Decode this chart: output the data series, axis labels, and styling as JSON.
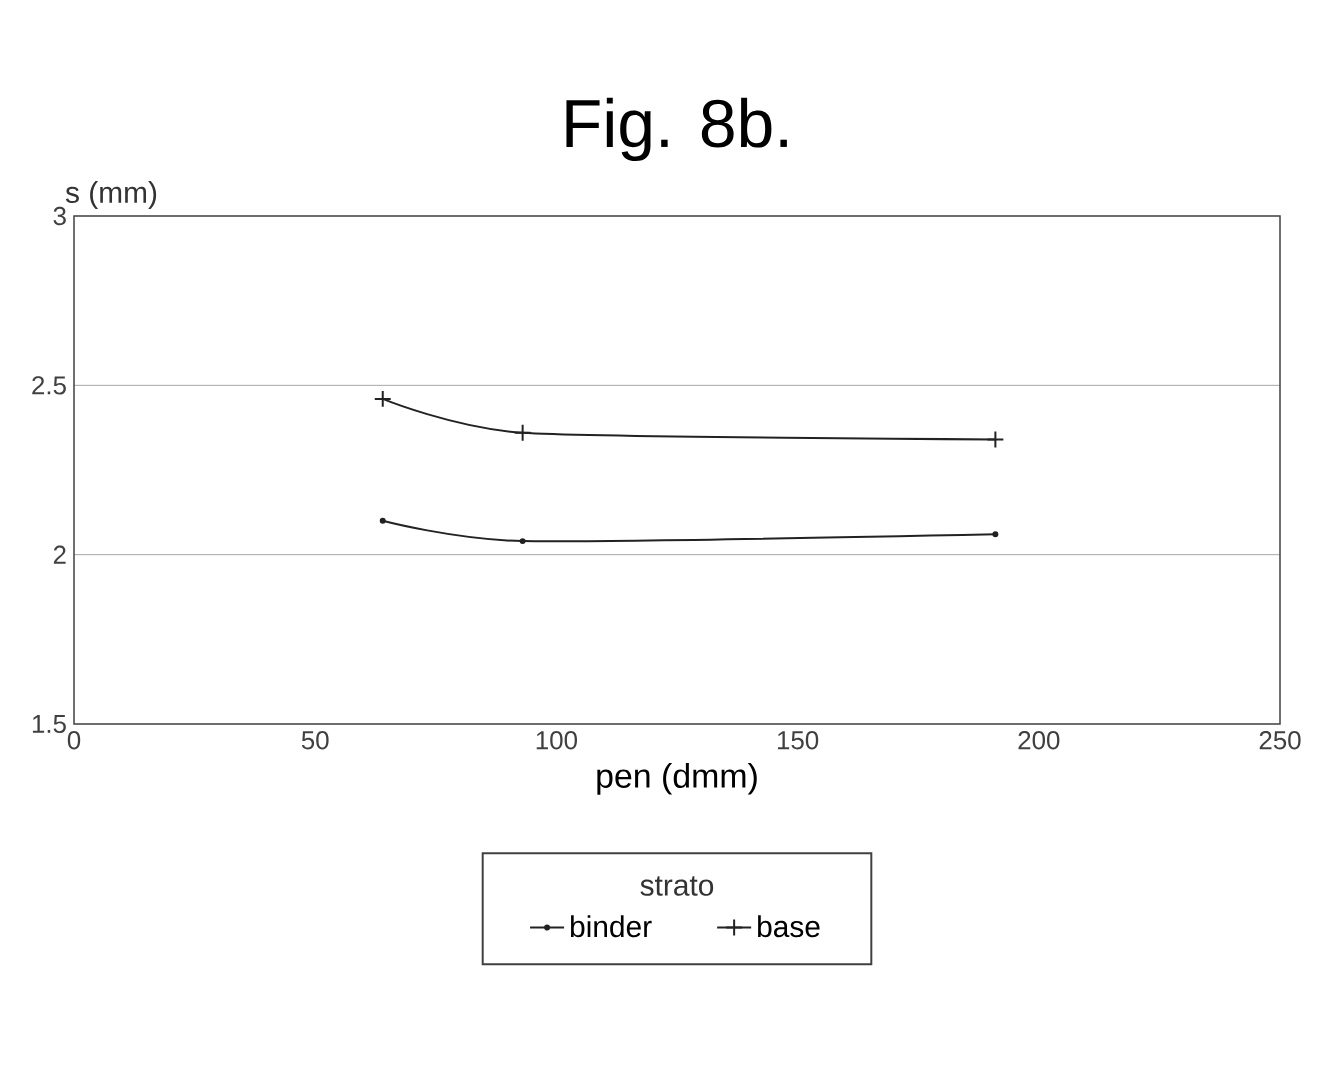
{
  "chart_data": {
    "type": "line",
    "title": "Fig. 8b.",
    "xlabel": "pen (dmm)",
    "ylabel": "s (mm)",
    "legend_title": "strato",
    "x": [
      64,
      93,
      191
    ],
    "series": [
      {
        "name": "binder",
        "color": "#222222",
        "values": [
          2.1,
          2.04,
          2.06
        ],
        "marker": "circle"
      },
      {
        "name": "base",
        "color": "#222222",
        "values": [
          2.46,
          2.36,
          2.34
        ],
        "marker": "cross"
      }
    ],
    "xlim": [
      0,
      250
    ],
    "ylim": [
      1.5,
      3
    ],
    "xticks": [
      0,
      50,
      100,
      150,
      200,
      250
    ],
    "yticks": [
      1.5,
      2,
      2.5,
      3
    ],
    "grid": "y",
    "legend": "bottom",
    "line_style": "solid"
  }
}
